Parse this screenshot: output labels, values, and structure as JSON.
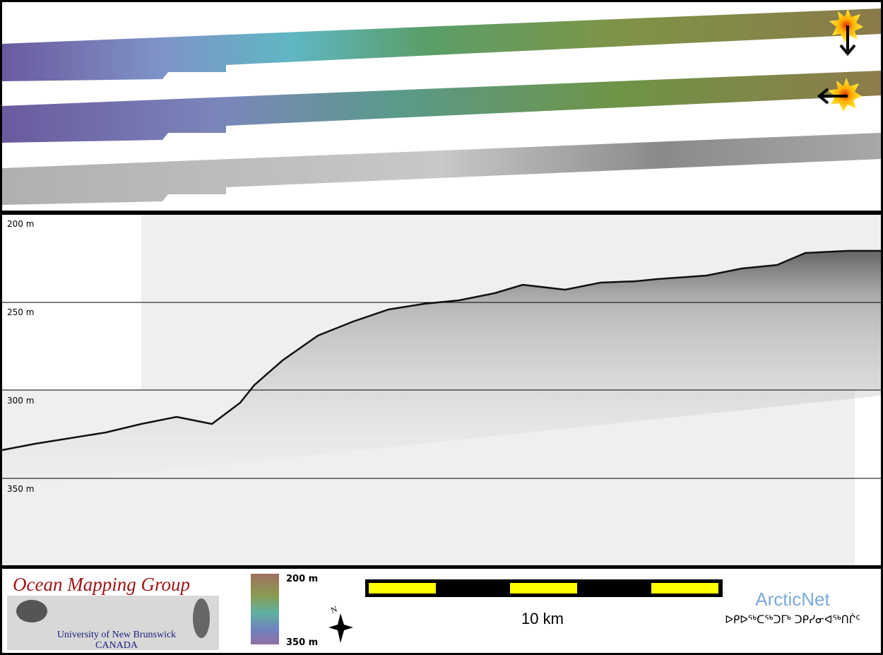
{
  "profile": {
    "depth_labels": [
      "200 m",
      "250 m",
      "300 m",
      "350 m"
    ]
  },
  "logo": {
    "title": "Ocean Mapping Group",
    "university": "University of New Brunswick",
    "country": "CANADA"
  },
  "colorbar": {
    "top_label": "200 m",
    "bottom_label": "350 m"
  },
  "scale_bar": {
    "label": "10 km"
  },
  "compass": {
    "label": "N"
  },
  "arcticnet": {
    "name": "ArcticNet",
    "inuktitut": "ᐅᑭᐅᖅᑕᖅᑐᒥᒃ ᑐᑭᓯᓂᐊᖅᑎᒌᑦ"
  }
}
